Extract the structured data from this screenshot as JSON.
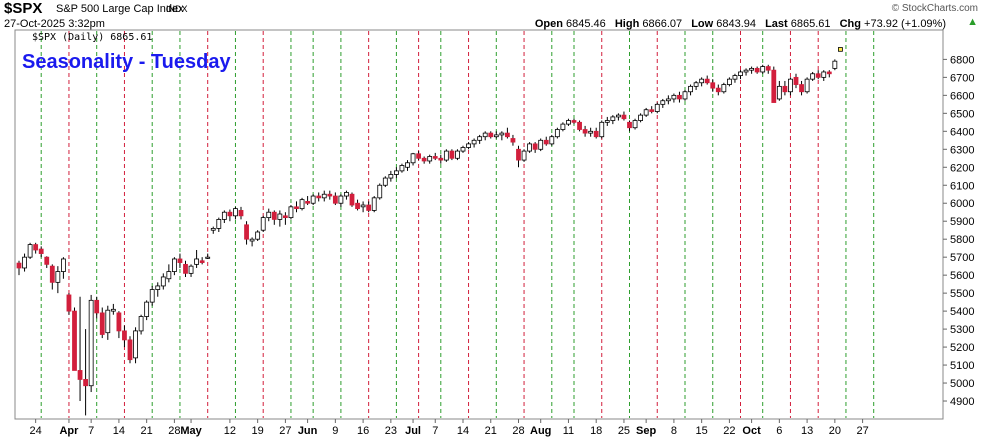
{
  "header": {
    "symbol": "$SPX",
    "company": "S&P 500 Large Cap Index",
    "exchange": "INDX",
    "watermark": "© StockCharts.com",
    "datetime": "27-Oct-2025 3:32pm",
    "open_label": "Open",
    "open": "6845.46",
    "high_label": "High",
    "high": "6866.07",
    "low_label": "Low",
    "low": "6843.94",
    "last_label": "Last",
    "last": "6865.61",
    "chg_label": "Chg",
    "chg": "+73.92 (+1.09%)",
    "chg_icon": "up-triangle-icon"
  },
  "chart_data": {
    "type": "candlestick",
    "title": "Seasonality - Tuesday",
    "legend": "$SPX (Daily) 6865.61",
    "legend_placement": "top-left",
    "ylim": [
      4800,
      6880
    ],
    "y_ticks": [
      4900,
      5000,
      5100,
      5200,
      5300,
      5400,
      5500,
      5600,
      5700,
      5800,
      5900,
      6000,
      6100,
      6200,
      6300,
      6400,
      6500,
      6600,
      6700,
      6800
    ],
    "y_axis_side": "right",
    "grid": false,
    "x_labels": [
      {
        "label": "24",
        "idx": 3
      },
      {
        "label": "Apr",
        "idx": 9,
        "month": true
      },
      {
        "label": "7",
        "idx": 13
      },
      {
        "label": "14",
        "idx": 18
      },
      {
        "label": "21",
        "idx": 23
      },
      {
        "label": "28",
        "idx": 28
      },
      {
        "label": "May",
        "idx": 31,
        "month": true
      },
      {
        "label": "12",
        "idx": 38
      },
      {
        "label": "19",
        "idx": 43
      },
      {
        "label": "27",
        "idx": 48
      },
      {
        "label": "Jun",
        "idx": 52,
        "month": true
      },
      {
        "label": "9",
        "idx": 57
      },
      {
        "label": "16",
        "idx": 62
      },
      {
        "label": "23",
        "idx": 67
      },
      {
        "label": "Jul",
        "idx": 71,
        "month": true
      },
      {
        "label": "7",
        "idx": 75
      },
      {
        "label": "14",
        "idx": 80
      },
      {
        "label": "21",
        "idx": 85
      },
      {
        "label": "28",
        "idx": 90
      },
      {
        "label": "Aug",
        "idx": 94,
        "month": true
      },
      {
        "label": "11",
        "idx": 99
      },
      {
        "label": "18",
        "idx": 104
      },
      {
        "label": "25",
        "idx": 109
      },
      {
        "label": "Sep",
        "idx": 113,
        "month": true
      },
      {
        "label": "8",
        "idx": 118
      },
      {
        "label": "15",
        "idx": 123
      },
      {
        "label": "22",
        "idx": 128
      },
      {
        "label": "Oct",
        "idx": 132,
        "month": true
      },
      {
        "label": "6",
        "idx": 137
      },
      {
        "label": "13",
        "idx": 142
      },
      {
        "label": "20",
        "idx": 147
      },
      {
        "label": "27",
        "idx": 152
      }
    ],
    "tuesday_lines": [
      {
        "idx": 4,
        "color": "green"
      },
      {
        "idx": 9,
        "color": "red"
      },
      {
        "idx": 14,
        "color": "green"
      },
      {
        "idx": 19,
        "color": "red"
      },
      {
        "idx": 24,
        "color": "green"
      },
      {
        "idx": 29,
        "color": "green"
      },
      {
        "idx": 34,
        "color": "red"
      },
      {
        "idx": 39,
        "color": "green"
      },
      {
        "idx": 44,
        "color": "red"
      },
      {
        "idx": 49,
        "color": "green"
      },
      {
        "idx": 53,
        "color": "green"
      },
      {
        "idx": 58,
        "color": "green"
      },
      {
        "idx": 63,
        "color": "red"
      },
      {
        "idx": 68,
        "color": "green"
      },
      {
        "idx": 72,
        "color": "red"
      },
      {
        "idx": 76,
        "color": "green"
      },
      {
        "idx": 81,
        "color": "red"
      },
      {
        "idx": 86,
        "color": "green"
      },
      {
        "idx": 91,
        "color": "red"
      },
      {
        "idx": 96,
        "color": "green"
      },
      {
        "idx": 100,
        "color": "green"
      },
      {
        "idx": 105,
        "color": "red"
      },
      {
        "idx": 110,
        "color": "green"
      },
      {
        "idx": 115,
        "color": "red"
      },
      {
        "idx": 120,
        "color": "green"
      },
      {
        "idx": 125,
        "color": "green"
      },
      {
        "idx": 130,
        "color": "red"
      },
      {
        "idx": 134,
        "color": "green"
      },
      {
        "idx": 139,
        "color": "red"
      },
      {
        "idx": 144,
        "color": "red"
      },
      {
        "idx": 149,
        "color": "green"
      },
      {
        "idx": 154,
        "color": "green"
      }
    ],
    "candles": [
      [
        5667,
        5680,
        5600,
        5640
      ],
      [
        5640,
        5720,
        5620,
        5700
      ],
      [
        5700,
        5780,
        5690,
        5770
      ],
      [
        5770,
        5780,
        5720,
        5740
      ],
      [
        5745,
        5760,
        5700,
        5720
      ],
      [
        5700,
        5705,
        5640,
        5660
      ],
      [
        5650,
        5660,
        5520,
        5560
      ],
      [
        5560,
        5650,
        5500,
        5620
      ],
      [
        5620,
        5700,
        5580,
        5690
      ],
      [
        5490,
        5500,
        5380,
        5400
      ],
      [
        5400,
        5420,
        5080,
        5070
      ],
      [
        5070,
        5480,
        4900,
        5020
      ],
      [
        5020,
        5300,
        4820,
        4985
      ],
      [
        4985,
        5490,
        4950,
        5460
      ],
      [
        5460,
        5480,
        5360,
        5390
      ],
      [
        5390,
        5420,
        5250,
        5270
      ],
      [
        5280,
        5430,
        5240,
        5405
      ],
      [
        5400,
        5440,
        5380,
        5410
      ],
      [
        5390,
        5400,
        5250,
        5290
      ],
      [
        5290,
        5320,
        5200,
        5240
      ],
      [
        5240,
        5260,
        5110,
        5130
      ],
      [
        5140,
        5310,
        5110,
        5290
      ],
      [
        5290,
        5380,
        5270,
        5370
      ],
      [
        5370,
        5460,
        5350,
        5450
      ],
      [
        5450,
        5540,
        5430,
        5520
      ],
      [
        5520,
        5560,
        5480,
        5540
      ],
      [
        5540,
        5610,
        5520,
        5590
      ],
      [
        5580,
        5660,
        5560,
        5620
      ],
      [
        5620,
        5700,
        5600,
        5690
      ],
      [
        5690,
        5720,
        5640,
        5670
      ],
      [
        5660,
        5680,
        5590,
        5610
      ],
      [
        5610,
        5660,
        5590,
        5650
      ],
      [
        5660,
        5740,
        5640,
        5690
      ],
      [
        5680,
        5700,
        5660,
        5670
      ],
      [
        5700,
        5720,
        5690,
        5700
      ],
      [
        5850,
        5870,
        5830,
        5860
      ],
      [
        5860,
        5920,
        5840,
        5910
      ],
      [
        5910,
        5960,
        5890,
        5950
      ],
      [
        5950,
        5965,
        5900,
        5930
      ],
      [
        5930,
        5980,
        5910,
        5970
      ],
      [
        5960,
        5980,
        5910,
        5930
      ],
      [
        5880,
        5900,
        5770,
        5800
      ],
      [
        5790,
        5810,
        5760,
        5800
      ],
      [
        5800,
        5850,
        5790,
        5840
      ],
      [
        5850,
        5930,
        5840,
        5920
      ],
      [
        5920,
        5970,
        5900,
        5950
      ],
      [
        5950,
        5960,
        5880,
        5910
      ],
      [
        5910,
        5960,
        5870,
        5940
      ],
      [
        5930,
        5950,
        5880,
        5920
      ],
      [
        5920,
        5990,
        5910,
        5980
      ],
      [
        5980,
        6010,
        5950,
        5970
      ],
      [
        5970,
        6030,
        5960,
        6020
      ],
      [
        6010,
        6040,
        5990,
        6000
      ],
      [
        6000,
        6050,
        5990,
        6040
      ],
      [
        6040,
        6060,
        6010,
        6030
      ],
      [
        6030,
        6070,
        6010,
        6050
      ],
      [
        6050,
        6070,
        6020,
        6040
      ],
      [
        6040,
        6060,
        5990,
        6000
      ],
      [
        6000,
        6050,
        5980,
        6040
      ],
      [
        6040,
        6070,
        6020,
        6060
      ],
      [
        6050,
        6060,
        5980,
        5990
      ],
      [
        6000,
        6020,
        5960,
        5970
      ],
      [
        5980,
        6010,
        5950,
        5990
      ],
      [
        5990,
        6010,
        5950,
        5960
      ],
      [
        5960,
        6040,
        5950,
        6030
      ],
      [
        6030,
        6110,
        6020,
        6100
      ],
      [
        6100,
        6150,
        6090,
        6140
      ],
      [
        6140,
        6180,
        6120,
        6160
      ],
      [
        6160,
        6200,
        6140,
        6180
      ],
      [
        6180,
        6220,
        6170,
        6210
      ],
      [
        6200,
        6240,
        6180,
        6225
      ],
      [
        6225,
        6280,
        6210,
        6275
      ],
      [
        6275,
        6290,
        6240,
        6250
      ],
      [
        6250,
        6260,
        6220,
        6235
      ],
      [
        6235,
        6270,
        6220,
        6260
      ],
      [
        6260,
        6280,
        6240,
        6250
      ],
      [
        6250,
        6270,
        6220,
        6240
      ],
      [
        6240,
        6300,
        6230,
        6290
      ],
      [
        6290,
        6300,
        6240,
        6250
      ],
      [
        6250,
        6300,
        6240,
        6290
      ],
      [
        6290,
        6320,
        6280,
        6310
      ],
      [
        6310,
        6340,
        6300,
        6330
      ],
      [
        6330,
        6360,
        6310,
        6350
      ],
      [
        6350,
        6380,
        6330,
        6370
      ],
      [
        6370,
        6400,
        6350,
        6390
      ],
      [
        6390,
        6400,
        6360,
        6370
      ],
      [
        6370,
        6400,
        6360,
        6380
      ],
      [
        6380,
        6400,
        6350,
        6390
      ],
      [
        6390,
        6420,
        6360,
        6370
      ],
      [
        6360,
        6380,
        6320,
        6340
      ],
      [
        6300,
        6320,
        6200,
        6240
      ],
      [
        6240,
        6300,
        6230,
        6290
      ],
      [
        6290,
        6340,
        6280,
        6330
      ],
      [
        6330,
        6340,
        6280,
        6300
      ],
      [
        6300,
        6360,
        6290,
        6350
      ],
      [
        6350,
        6370,
        6320,
        6330
      ],
      [
        6330,
        6380,
        6320,
        6370
      ],
      [
        6370,
        6420,
        6360,
        6410
      ],
      [
        6410,
        6450,
        6400,
        6440
      ],
      [
        6440,
        6470,
        6430,
        6460
      ],
      [
        6460,
        6470,
        6440,
        6450
      ],
      [
        6450,
        6460,
        6400,
        6410
      ],
      [
        6410,
        6430,
        6370,
        6390
      ],
      [
        6390,
        6420,
        6370,
        6400
      ],
      [
        6400,
        6420,
        6360,
        6370
      ],
      [
        6370,
        6460,
        6360,
        6450
      ],
      [
        6450,
        6480,
        6430,
        6460
      ],
      [
        6460,
        6490,
        6440,
        6480
      ],
      [
        6480,
        6500,
        6460,
        6490
      ],
      [
        6490,
        6510,
        6460,
        6470
      ],
      [
        6450,
        6460,
        6400,
        6420
      ],
      [
        6420,
        6470,
        6410,
        6460
      ],
      [
        6460,
        6500,
        6450,
        6490
      ],
      [
        6490,
        6530,
        6480,
        6520
      ],
      [
        6520,
        6540,
        6500,
        6510
      ],
      [
        6510,
        6560,
        6500,
        6550
      ],
      [
        6550,
        6580,
        6530,
        6570
      ],
      [
        6570,
        6600,
        6550,
        6580
      ],
      [
        6580,
        6610,
        6560,
        6600
      ],
      [
        6600,
        6620,
        6560,
        6580
      ],
      [
        6580,
        6630,
        6570,
        6620
      ],
      [
        6620,
        6660,
        6600,
        6650
      ],
      [
        6650,
        6680,
        6630,
        6670
      ],
      [
        6670,
        6700,
        6650,
        6690
      ],
      [
        6690,
        6710,
        6660,
        6670
      ],
      [
        6670,
        6690,
        6620,
        6640
      ],
      [
        6640,
        6660,
        6600,
        6620
      ],
      [
        6620,
        6670,
        6610,
        6660
      ],
      [
        6660,
        6700,
        6650,
        6690
      ],
      [
        6690,
        6720,
        6670,
        6710
      ],
      [
        6710,
        6740,
        6690,
        6730
      ],
      [
        6730,
        6750,
        6710,
        6740
      ],
      [
        6740,
        6760,
        6720,
        6750
      ],
      [
        6750,
        6760,
        6720,
        6730
      ],
      [
        6730,
        6770,
        6720,
        6760
      ],
      [
        6760,
        6770,
        6720,
        6740
      ],
      [
        6740,
        6760,
        6560,
        6560
      ],
      [
        6580,
        6680,
        6570,
        6650
      ],
      [
        6650,
        6680,
        6600,
        6620
      ],
      [
        6620,
        6700,
        6600,
        6690
      ],
      [
        6700,
        6720,
        6640,
        6660
      ],
      [
        6660,
        6680,
        6600,
        6620
      ],
      [
        6620,
        6700,
        6610,
        6690
      ],
      [
        6690,
        6730,
        6680,
        6720
      ],
      [
        6720,
        6740,
        6690,
        6700
      ],
      [
        6700,
        6740,
        6680,
        6730
      ],
      [
        6730,
        6740,
        6700,
        6720
      ],
      [
        6750,
        6800,
        6740,
        6790
      ],
      [
        6845,
        6866,
        6844,
        6866
      ]
    ]
  }
}
